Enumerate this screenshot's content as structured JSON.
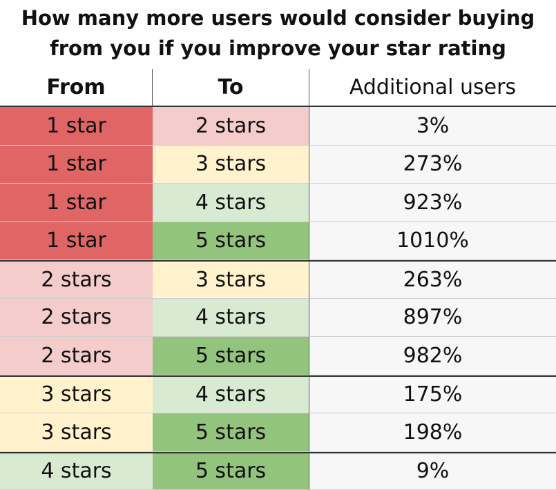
{
  "title": {
    "line1": "How many more users would consider buying",
    "line2": "from you if you improve your star rating"
  },
  "colors": {
    "1 star": "#e06666",
    "2 stars": "#f4cccc",
    "3 stars": "#fff2cc",
    "4 stars": "#d9ead3",
    "5 stars": "#93c47d",
    "additional_bg": "#f7f7f7"
  },
  "chart_data": {
    "type": "table",
    "columns": [
      "From",
      "To",
      "Additional users"
    ],
    "rows": [
      [
        "1 star",
        "2 stars",
        "3%"
      ],
      [
        "1 star",
        "3 stars",
        "273%"
      ],
      [
        "1 star",
        "4 stars",
        "923%"
      ],
      [
        "1 star",
        "5 stars",
        "1010%"
      ],
      [
        "2 stars",
        "3 stars",
        "263%"
      ],
      [
        "2 stars",
        "4 stars",
        "897%"
      ],
      [
        "2 stars",
        "5 stars",
        "982%"
      ],
      [
        "3 stars",
        "4 stars",
        "175%"
      ],
      [
        "3 stars",
        "5 stars",
        "198%"
      ],
      [
        "4 stars",
        "5 stars",
        "9%"
      ]
    ],
    "values": [
      3,
      273,
      923,
      1010,
      263,
      897,
      982,
      175,
      198,
      9
    ]
  }
}
